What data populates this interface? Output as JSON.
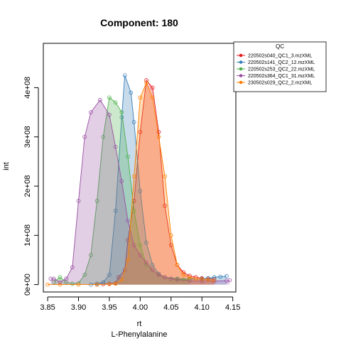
{
  "chart_data": {
    "type": "area",
    "title": "Component: 180",
    "xlabel": "rt",
    "ylabel": "int",
    "subtitle": "L-Phenylalanine",
    "xlim": [
      3.843,
      4.155
    ],
    "ylim": [
      -15000000.0,
      490000000.0
    ],
    "x_ticks": [
      3.85,
      3.9,
      3.95,
      4.0,
      4.05,
      4.1,
      4.15
    ],
    "x_tick_labels": [
      "3.85",
      "3.90",
      "3.95",
      "4.00",
      "4.05",
      "4.10",
      "4.15"
    ],
    "y_ticks": [
      0,
      100000000,
      200000000,
      300000000,
      400000000
    ],
    "y_tick_labels": [
      "0e+00",
      "1e+08",
      "2e+08",
      "3e+08",
      "4e+08"
    ],
    "legend": {
      "title": "QC",
      "position": "top-right"
    },
    "series": [
      {
        "name": "220502s040_QC1_3.mzXML",
        "color": "#E41A1C",
        "x": [
          3.93,
          3.94,
          3.95,
          3.96,
          3.965,
          3.975,
          3.98,
          3.99,
          4.0,
          4.01,
          4.02,
          4.03,
          4.04,
          4.05,
          4.06,
          4.07,
          4.08,
          4.09,
          4.1,
          4.11,
          4.12
        ],
        "y": [
          0,
          1000000,
          2000000,
          3000000,
          15000000,
          30000000,
          90000000,
          170000000,
          310000000,
          415000000,
          400000000,
          310000000,
          160000000,
          80000000,
          40000000,
          25000000,
          18000000,
          15000000,
          13000000,
          12000000,
          11000000
        ]
      },
      {
        "name": "220502s141_QC2_12.mzXML",
        "color": "#377EB8",
        "x": [
          3.92,
          3.93,
          3.94,
          3.95,
          3.96,
          3.97,
          3.975,
          3.985,
          3.99,
          4.0,
          4.01,
          4.02,
          4.03,
          4.04,
          4.06,
          4.08,
          4.1,
          4.11,
          4.12,
          4.13,
          4.14
        ],
        "y": [
          0,
          2000000,
          5000000,
          20000000,
          150000000,
          340000000,
          425000000,
          390000000,
          330000000,
          190000000,
          85000000,
          40000000,
          22000000,
          15000000,
          12000000,
          11000000,
          12000000,
          13000000,
          15000000,
          16000000,
          17000000
        ]
      },
      {
        "name": "220502s253_QC2_22.mzXML",
        "color": "#4DAF4A",
        "x": [
          3.86,
          3.87,
          3.88,
          3.89,
          3.9,
          3.91,
          3.92,
          3.93,
          3.94,
          3.95,
          3.96,
          3.97,
          3.98,
          3.99,
          4.0,
          4.01,
          4.02,
          4.03,
          4.04,
          4.05,
          4.06,
          4.07,
          4.08
        ],
        "y": [
          5000000,
          15000000,
          5000000,
          2000000,
          3000000,
          20000000,
          60000000,
          170000000,
          300000000,
          380000000,
          370000000,
          350000000,
          260000000,
          150000000,
          80000000,
          40000000,
          30000000,
          20000000,
          15000000,
          12000000,
          11000000,
          10000000,
          10000000
        ]
      },
      {
        "name": "220502s364_QC1_31.mzXML",
        "color": "#984EA3",
        "x": [
          3.855,
          3.86,
          3.87,
          3.88,
          3.89,
          3.9,
          3.91,
          3.92,
          3.935,
          3.95,
          3.96,
          3.97,
          3.98,
          3.99,
          4.0,
          4.01,
          4.02,
          4.03,
          4.04,
          4.05,
          4.06,
          4.08,
          4.1,
          4.12,
          4.14,
          4.145
        ],
        "y": [
          12000000,
          12000000,
          5000000,
          12000000,
          35000000,
          170000000,
          300000000,
          350000000,
          375000000,
          345000000,
          280000000,
          210000000,
          130000000,
          80000000,
          60000000,
          45000000,
          30000000,
          20000000,
          15000000,
          12000000,
          10000000,
          8000000,
          7000000,
          7000000,
          8000000,
          9000000
        ]
      },
      {
        "name": "230502s029_QC2_2.mzXML",
        "color": "#FF7F00",
        "x": [
          3.85,
          3.87,
          3.9,
          3.93,
          3.95,
          3.96,
          3.97,
          3.98,
          3.99,
          4.0,
          4.01,
          4.02,
          4.03,
          4.04,
          4.05,
          4.06,
          4.07,
          4.08,
          4.09,
          4.1,
          4.11,
          4.12
        ],
        "y": [
          0,
          0,
          0,
          0,
          1000000,
          2000000,
          10000000,
          50000000,
          220000000,
          380000000,
          410000000,
          380000000,
          300000000,
          220000000,
          100000000,
          40000000,
          20000000,
          15000000,
          12000000,
          11000000,
          10000000,
          9000000
        ]
      }
    ]
  }
}
